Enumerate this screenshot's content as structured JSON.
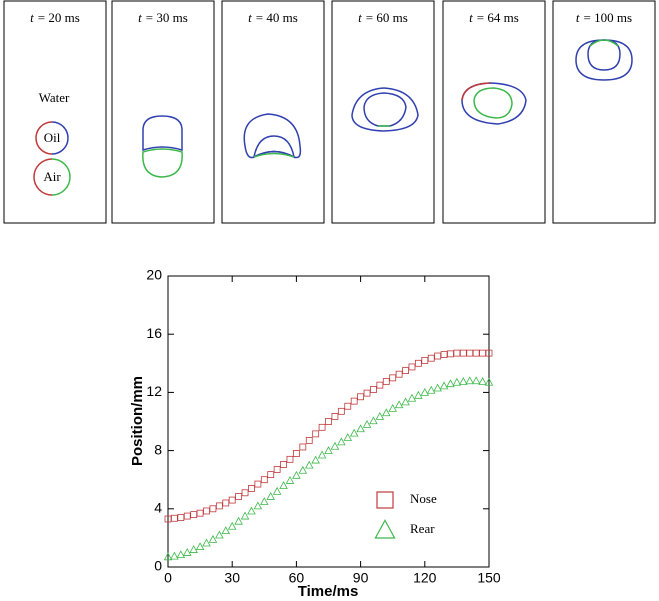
{
  "panels": [
    {
      "var": "t",
      "rest": "= 20 ms"
    },
    {
      "var": "t",
      "rest": "= 30 ms"
    },
    {
      "var": "t",
      "rest": "= 40 ms"
    },
    {
      "var": "t",
      "rest": "= 60 ms"
    },
    {
      "var": "t",
      "rest": "= 64 ms"
    },
    {
      "var": "t",
      "rest": "= 100 ms"
    }
  ],
  "panel_labels": {
    "water": "Water",
    "oil": "Oil",
    "air": "Air"
  },
  "chart_data": {
    "type": "scatter",
    "xlabel": "Time/ms",
    "ylabel": "Position/mm",
    "xlim": [
      0,
      150
    ],
    "xticks": [
      0,
      30,
      60,
      90,
      120,
      150
    ],
    "ylim": [
      0,
      20
    ],
    "yticks": [
      0,
      4,
      8,
      12,
      16,
      20
    ],
    "legend": "lower right",
    "x": [
      0,
      3,
      6,
      9,
      12,
      15,
      18,
      21,
      24,
      27,
      30,
      33,
      36,
      39,
      42,
      45,
      48,
      51,
      54,
      57,
      60,
      63,
      66,
      69,
      72,
      75,
      78,
      81,
      84,
      87,
      90,
      93,
      96,
      99,
      102,
      105,
      108,
      111,
      114,
      117,
      120,
      123,
      126,
      129,
      132,
      135,
      138,
      141,
      144,
      147,
      150
    ],
    "series": [
      {
        "name": "Nose",
        "color": "#c0393b",
        "marker": "square",
        "values": [
          3.3,
          3.35,
          3.4,
          3.5,
          3.6,
          3.7,
          3.85,
          4.0,
          4.2,
          4.4,
          4.6,
          4.85,
          5.1,
          5.4,
          5.7,
          6.0,
          6.35,
          6.7,
          7.05,
          7.4,
          7.8,
          8.25,
          8.7,
          9.15,
          9.6,
          10.0,
          10.35,
          10.7,
          11.05,
          11.4,
          11.7,
          11.95,
          12.2,
          12.5,
          12.75,
          13.0,
          13.25,
          13.5,
          13.75,
          14.0,
          14.2,
          14.35,
          14.5,
          14.6,
          14.65,
          14.7,
          14.7,
          14.7,
          14.7,
          14.7,
          14.7
        ]
      },
      {
        "name": "Rear",
        "color": "#3cb84a",
        "marker": "triangle",
        "values": [
          0.7,
          0.75,
          0.85,
          1.0,
          1.2,
          1.4,
          1.65,
          1.9,
          2.2,
          2.5,
          2.8,
          3.15,
          3.5,
          3.85,
          4.2,
          4.5,
          4.85,
          5.2,
          5.6,
          5.95,
          6.3,
          6.65,
          7.0,
          7.35,
          7.7,
          8.0,
          8.3,
          8.6,
          8.9,
          9.2,
          9.5,
          9.8,
          10.05,
          10.35,
          10.6,
          10.9,
          11.15,
          11.35,
          11.6,
          11.8,
          12.0,
          12.15,
          12.3,
          12.45,
          12.6,
          12.7,
          12.75,
          12.8,
          12.8,
          12.75,
          12.7
        ]
      }
    ]
  }
}
